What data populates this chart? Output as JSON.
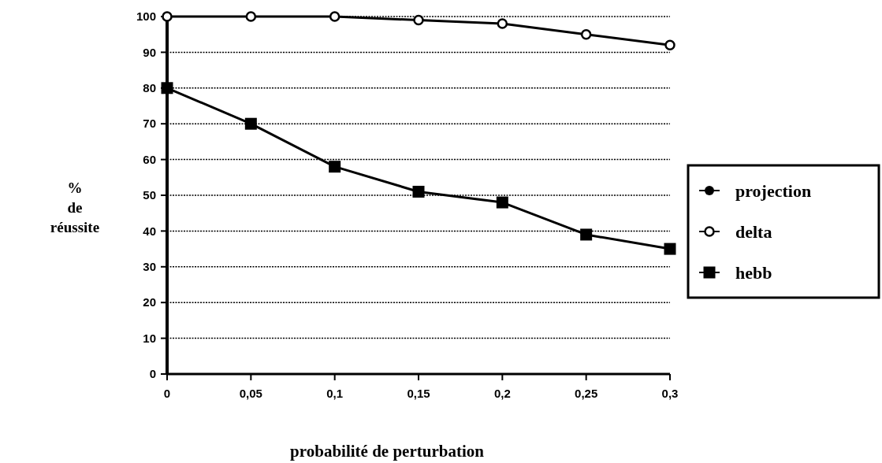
{
  "chart_data": {
    "type": "line",
    "xlabel": "probabilité de perturbation",
    "ylabel": "% de réussite",
    "x": [
      0,
      0.05,
      0.1,
      0.15,
      0.2,
      0.25,
      0.3
    ],
    "series": [
      {
        "name": "projection",
        "color": "#000000",
        "marker": "circle",
        "values": [
          null,
          null,
          null,
          null,
          null,
          null,
          null
        ]
      },
      {
        "name": "delta",
        "color": "#000000",
        "marker": "circle-open",
        "values": [
          100,
          100,
          100,
          99,
          98,
          95,
          92
        ]
      },
      {
        "name": "hebb",
        "color": "#000000",
        "marker": "square",
        "values": [
          80,
          70,
          58,
          51,
          48,
          39,
          35
        ]
      }
    ],
    "xlim": [
      0,
      0.3
    ],
    "xticks": [
      {
        "value": 0,
        "label": "0"
      },
      {
        "value": 0.05,
        "label": "0,05"
      },
      {
        "value": 0.1,
        "label": "0,1"
      },
      {
        "value": 0.15,
        "label": "0,15"
      },
      {
        "value": 0.2,
        "label": "0,2"
      },
      {
        "value": 0.25,
        "label": "0,25"
      },
      {
        "value": 0.3,
        "label": "0,3"
      }
    ],
    "ylim": [
      0,
      100
    ],
    "yticks": [
      0,
      10,
      20,
      30,
      40,
      50,
      60,
      70,
      80,
      90,
      100
    ],
    "grid": "y",
    "legend": "right"
  }
}
